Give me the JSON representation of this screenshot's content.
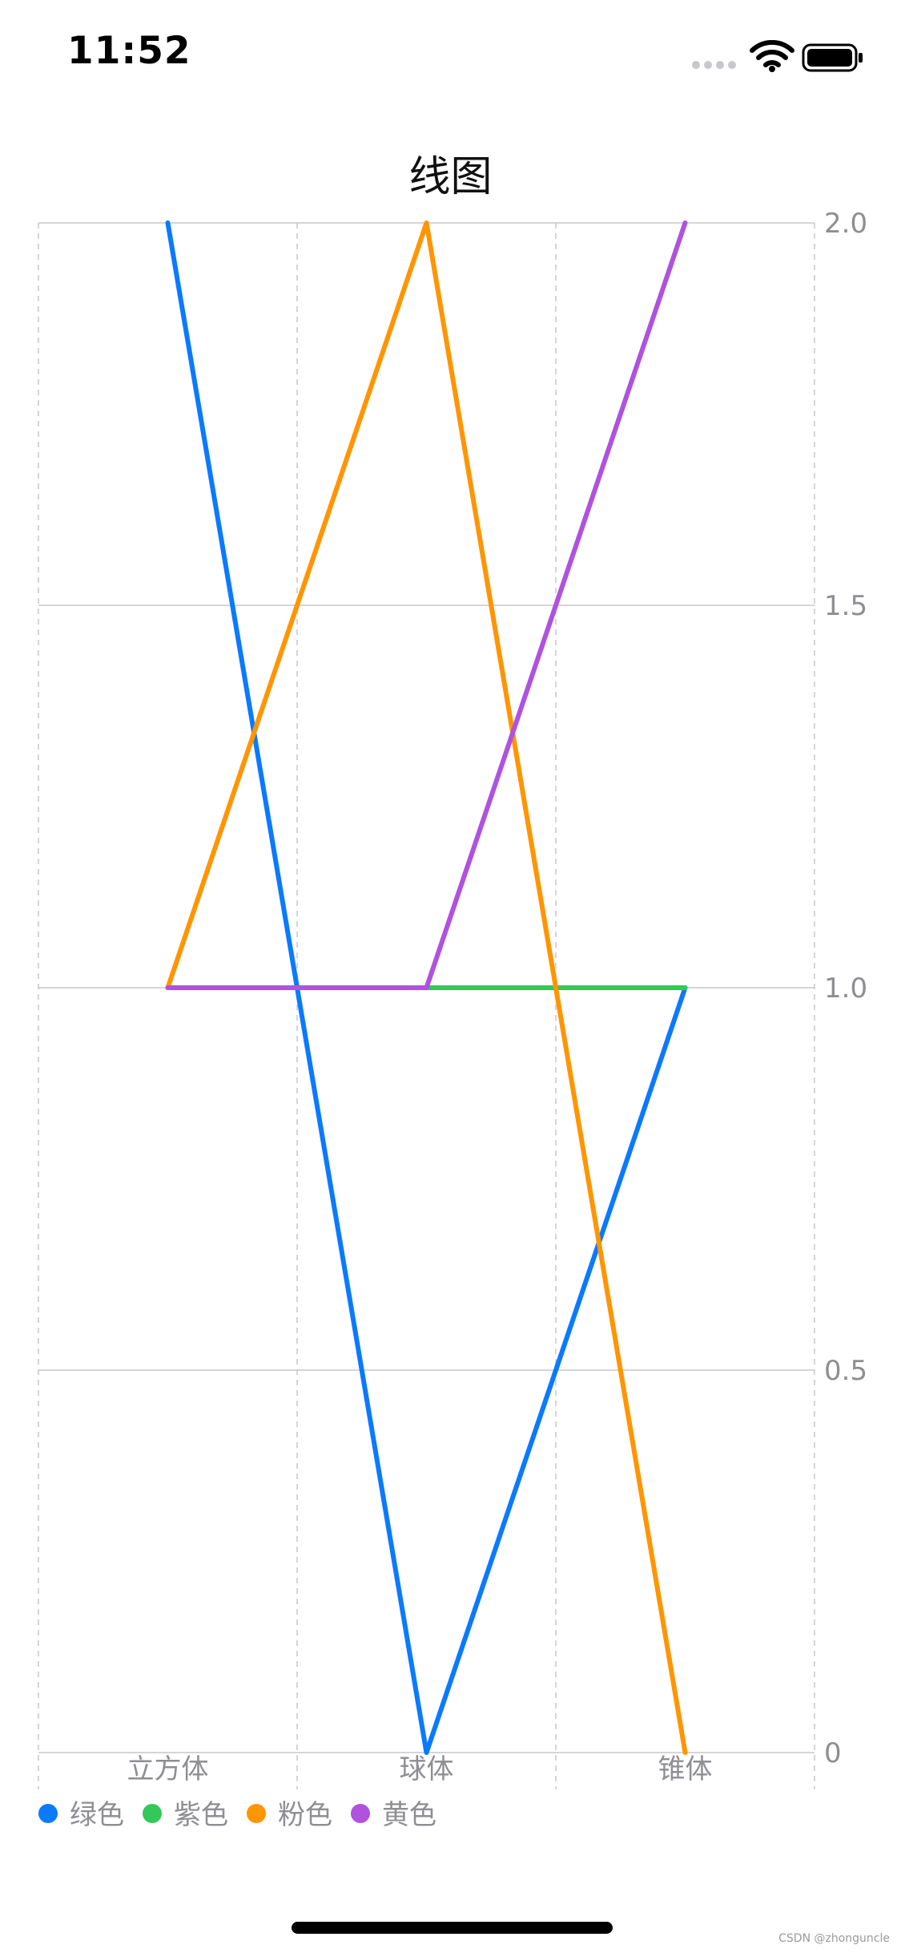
{
  "status_bar": {
    "time": "11:52",
    "icons": [
      "signal-dots-icon",
      "wifi-icon",
      "battery-icon"
    ]
  },
  "watermark": "CSDN @zhonguncle",
  "chart_data": {
    "type": "line",
    "title": "线图",
    "categories": [
      "立方体",
      "球体",
      "锥体"
    ],
    "ylim": [
      0,
      2
    ],
    "y_ticks": [
      {
        "value": 0,
        "label": "0"
      },
      {
        "value": 0.5,
        "label": "0.5"
      },
      {
        "value": 1,
        "label": "1.0"
      },
      {
        "value": 1.5,
        "label": "1.5"
      },
      {
        "value": 2,
        "label": "2.0"
      }
    ],
    "grid": true,
    "y_axis_side": "right",
    "legend_position": "bottom-left",
    "series": [
      {
        "name": "绿色",
        "color": "#0a7aff",
        "values": [
          2,
          0,
          1
        ]
      },
      {
        "name": "紫色",
        "color": "#34c759",
        "values": [
          1,
          1,
          1
        ]
      },
      {
        "name": "粉色",
        "color": "#ff9500",
        "values": [
          1,
          2,
          0
        ]
      },
      {
        "name": "黄色",
        "color": "#af52de",
        "values": [
          1,
          1,
          2
        ]
      }
    ],
    "axis_text_color": "#8e8e93",
    "grid_color": "#c7c7cc"
  }
}
